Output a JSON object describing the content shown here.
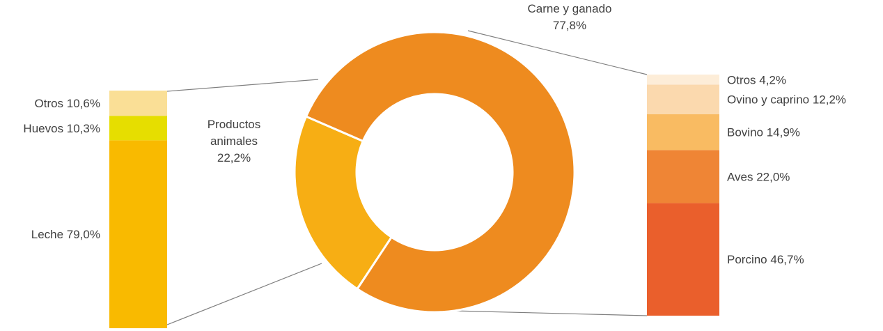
{
  "chart_data": [
    {
      "type": "pie",
      "variant": "donut",
      "slices": [
        {
          "label_lines": [
            "Productos",
            "animales"
          ],
          "value_label": "22,2%",
          "value": 22.2,
          "color": "#F7AE14"
        },
        {
          "label_lines": [
            "Carne y ganado"
          ],
          "value_label": "77,8%",
          "value": 77.8,
          "color": "#EE8B1F"
        }
      ]
    },
    {
      "type": "bar",
      "variant": "100% stacked column",
      "breakdown_of": "Productos animales",
      "series": [
        {
          "name": "Leche",
          "label": "Leche 79,0%",
          "value": 79.0,
          "color": "#F9BA00"
        },
        {
          "name": "Huevos",
          "label": "Huevos 10,3%",
          "value": 10.3,
          "color": "#E6DE00"
        },
        {
          "name": "Otros",
          "label": "Otros 10,6%",
          "value": 10.6,
          "color": "#FADF96"
        }
      ]
    },
    {
      "type": "bar",
      "variant": "100% stacked column",
      "breakdown_of": "Carne y ganado",
      "series": [
        {
          "name": "Porcino",
          "label": "Porcino 46,7%",
          "value": 46.7,
          "color": "#EA5F2C"
        },
        {
          "name": "Aves",
          "label": "Aves 22,0%",
          "value": 22.0,
          "color": "#EF8535"
        },
        {
          "name": "Bovino",
          "label": "Bovino 14,9%",
          "value": 14.9,
          "color": "#F9BB62"
        },
        {
          "name": "Ovino y caprino",
          "label": "Ovino y caprino 12,2%",
          "value": 12.2,
          "color": "#FBD9AE"
        },
        {
          "name": "Otros",
          "label": "Otros  4,2%",
          "value": 4.2,
          "color": "#FDEDD8"
        }
      ]
    }
  ]
}
